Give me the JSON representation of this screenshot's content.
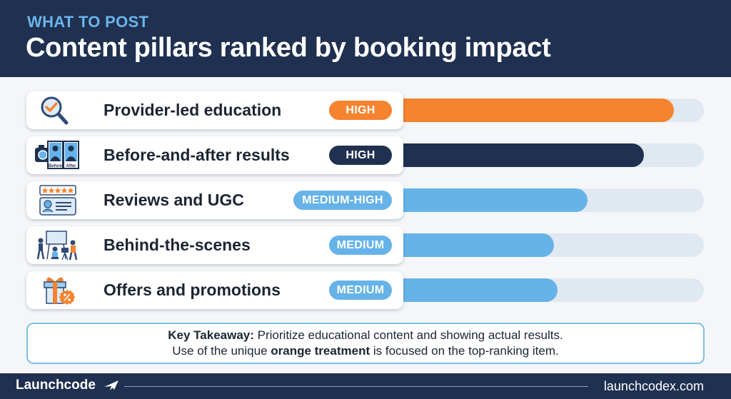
{
  "header": {
    "eyebrow": "WHAT TO POST",
    "title": "Content pillars ranked by booking impact"
  },
  "chart_data": {
    "type": "bar",
    "orientation": "horizontal",
    "categories": [
      "Provider-led education",
      "Before-and-after results",
      "Reviews and UGC",
      "Behind-the-scenes",
      "Offers and promotions"
    ],
    "ratings": [
      "HIGH",
      "HIGH",
      "MEDIUM-HIGH",
      "MEDIUM",
      "MEDIUM"
    ],
    "values": [
      0.91,
      0.82,
      0.65,
      0.55,
      0.56
    ],
    "value_scale": "fraction of track",
    "grid": false
  },
  "items": [
    {
      "label": "Provider-led education",
      "rating": "HIGH",
      "icon": "magnifier-check-icon",
      "color": "#f5832f"
    },
    {
      "label": "Before-and-after results",
      "rating": "HIGH",
      "icon": "before-after-photos-icon",
      "color": "#1f3050",
      "icon_labels": [
        "Before",
        "After"
      ]
    },
    {
      "label": "Reviews and UGC",
      "rating": "MEDIUM-HIGH",
      "icon": "star-review-card-icon",
      "color": "#65b3e9"
    },
    {
      "label": "Behind-the-scenes",
      "rating": "MEDIUM",
      "icon": "film-crew-icon",
      "color": "#65b3e9"
    },
    {
      "label": "Offers and promotions",
      "rating": "MEDIUM",
      "icon": "gift-discount-icon",
      "color": "#65b3e9"
    }
  ],
  "colors": {
    "navy": "#1f3050",
    "orange": "#f5832f",
    "light_blue": "#65b3e9",
    "track": "#e0e8f1",
    "eyebrow": "#6cb4ea"
  },
  "takeaway": {
    "lead": "Key Takeaway:",
    "line1": " Prioritize educational content and showing actual results.",
    "line2_start": "Use of the unique ",
    "line2_bold": "orange treatment",
    "line2_end": " is focused on the top-ranking item."
  },
  "footer": {
    "brand": "Launchcode",
    "brand_icon": "airplane-icon",
    "site": "launchcodex.com"
  }
}
